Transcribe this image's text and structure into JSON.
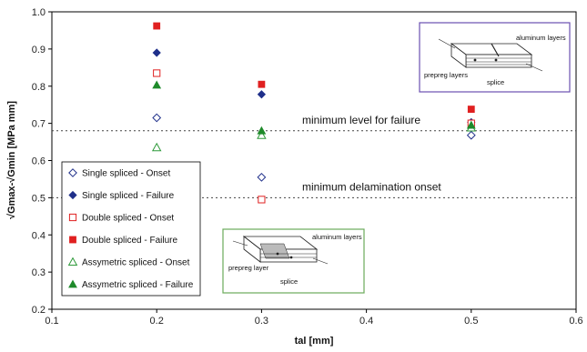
{
  "chart_data": {
    "type": "scatter",
    "xlabel": "tal [mm]",
    "ylabel": "√Gmax-√Gmin [MPa mm]",
    "xlim": [
      0.1,
      0.6
    ],
    "ylim": [
      0.2,
      1.0
    ],
    "x_ticks": [
      "0.1",
      "0.2",
      "0.3",
      "0.4",
      "0.5",
      "0.6"
    ],
    "y_ticks": [
      "0.2",
      "0.3",
      "0.4",
      "0.5",
      "0.6",
      "0.7",
      "0.8",
      "0.9",
      "1.0"
    ],
    "grid": false,
    "legend_position": "left",
    "series": [
      {
        "name": "Single spliced - Onset",
        "marker": "diamond-open",
        "color": "#1f2f8a",
        "x": [
          0.2,
          0.3,
          0.5
        ],
        "y": [
          0.715,
          0.555,
          0.668
        ]
      },
      {
        "name": "Single spliced - Failure",
        "marker": "diamond-filled",
        "color": "#1f2f8a",
        "x": [
          0.2,
          0.3,
          0.5
        ],
        "y": [
          0.89,
          0.778,
          0.703
        ]
      },
      {
        "name": "Double spliced - Onset",
        "marker": "square-open",
        "color": "#e02020",
        "x": [
          0.2,
          0.3,
          0.5
        ],
        "y": [
          0.835,
          0.495,
          0.7
        ]
      },
      {
        "name": "Double spliced - Failure",
        "marker": "square-filled",
        "color": "#e02020",
        "x": [
          0.2,
          0.3,
          0.5
        ],
        "y": [
          0.962,
          0.805,
          0.738
        ]
      },
      {
        "name": "Assymetric spliced - Onset",
        "marker": "triangle-open",
        "color": "#2e9a3a",
        "x": [
          0.2,
          0.3,
          0.5
        ],
        "y": [
          0.635,
          0.668,
          0.688
        ]
      },
      {
        "name": "Assymetric spliced - Failure",
        "marker": "triangle-filled",
        "color": "#1e8a2a",
        "x": [
          0.2,
          0.3,
          0.5
        ],
        "y": [
          0.803,
          0.68,
          0.695
        ]
      }
    ],
    "reference_lines": [
      {
        "y": 0.68,
        "label": "minimum level for failure",
        "style": "dotted"
      },
      {
        "y": 0.5,
        "label": "minimum delamination onset",
        "style": "dotted"
      }
    ]
  },
  "insets": {
    "top": {
      "label_aluminum": "aluminum layers",
      "label_prepreg": "prepreg layers",
      "label_splice": "splice",
      "border_color": "#6a4fb0"
    },
    "bottom": {
      "label_aluminum": "aluminum layers",
      "label_prepreg": "prepreg layer",
      "label_splice": "splice",
      "border_color": "#6aaa5a"
    }
  }
}
